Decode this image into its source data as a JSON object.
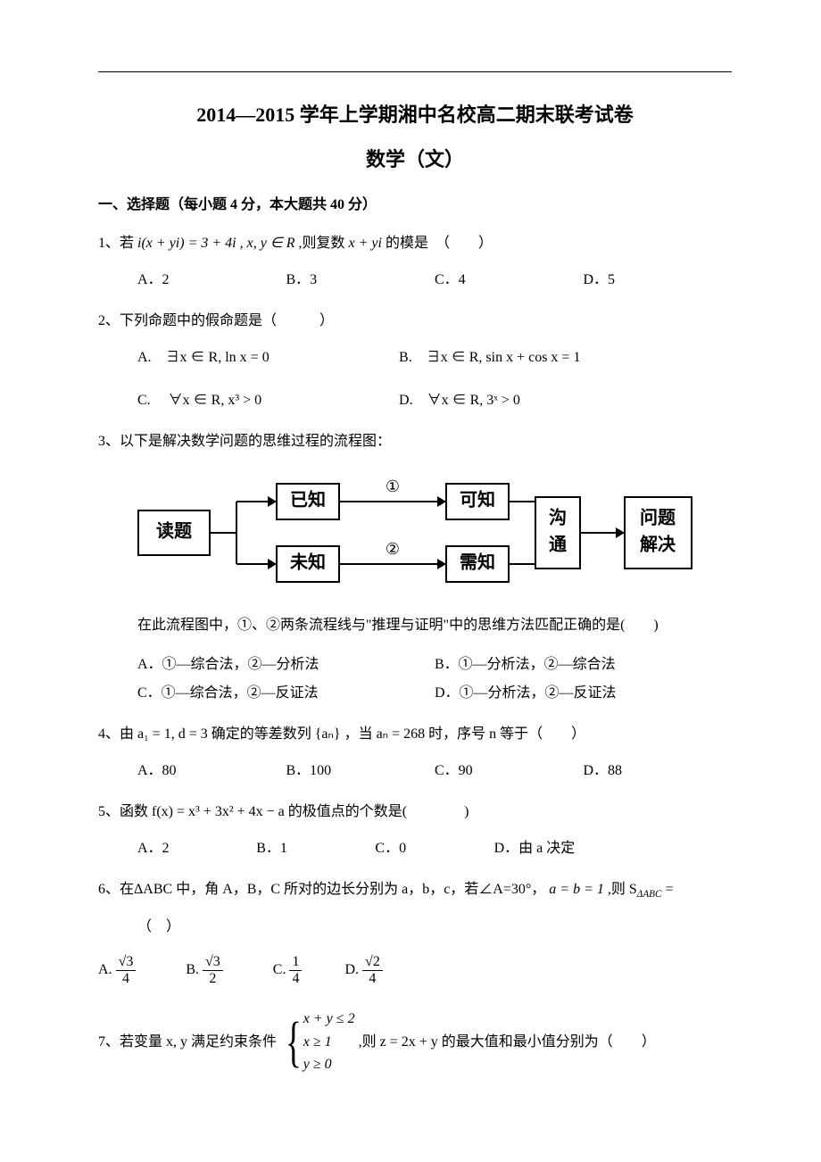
{
  "header": {
    "title": "2014—2015 学年上学期湘中名校高二期末联考试卷",
    "subtitle": "数学（文）"
  },
  "section1": {
    "heading": "一、选择题（每小题 4 分，本大题共 40 分）"
  },
  "q1": {
    "stem_pre": "1、若 ",
    "math": "i(x + yi) = 3 + 4i , x, y ∈ R",
    "stem_mid": " ,则复数 ",
    "math2": "x + yi",
    "stem_post": " 的模是　（　　）",
    "optA": "A．2",
    "optB": "B．3",
    "optC": "C．4",
    "optD": "D．5"
  },
  "q2": {
    "stem": "2、下列命题中的假命题是（　　　）",
    "optA": "A.　∃x ∈ R, ln x = 0",
    "optB": "B.　∃x ∈ R, sin x + cos x = 1",
    "optC": "C.　 ∀x ∈ R, x³ > 0",
    "optD": "D.　∀x ∈ R, 3ˣ > 0"
  },
  "q3": {
    "stem": "3、以下是解决数学问题的思维过程的流程图：",
    "flow": {
      "nodes": {
        "read": "读题",
        "known": "已知",
        "unknown": "未知",
        "canknow": "可知",
        "needknow": "需知",
        "comm_top": "沟",
        "comm_bot": "通",
        "solve_top": "问题",
        "solve_bot": "解决"
      },
      "labels": {
        "one": "①",
        "two": "②"
      },
      "colors": {
        "stroke": "#000000",
        "fill": "#ffffff",
        "text": "#000000"
      }
    },
    "after": "在此流程图中，①、②两条流程线与\"推理与证明\"中的思维方法匹配正确的是(　　)",
    "optA": "A．①—综合法，②—分析法",
    "optB": "B．①—分析法，②—综合法",
    "optC": "C．①—综合法，②—反证法",
    "optD": "D．①—分析法，②—反证法"
  },
  "q4": {
    "stem": "4、由 a₁ = 1, d = 3 确定的等差数列 {aₙ} ，当 aₙ = 268 时，序号 n 等于（　　）",
    "optA": "A．80",
    "optB": "B．100",
    "optC": "C．90",
    "optD": "D．88"
  },
  "q5": {
    "stem": "5、函数 f(x) = x³ + 3x² + 4x − a 的极值点的个数是(　　　　)",
    "optA": "A．2",
    "optB": "B．1",
    "optC": "C．0",
    "optD": "D．由 a 决定"
  },
  "q6": {
    "stem_pre": "6、在ΔABC 中，角 A，B，C 所对的边长分别为 a，b，c，若∠A=30°，",
    "stem_math": " a = b = 1",
    "stem_post": " ,则 S",
    "sub": "ΔABC",
    "equals": " =",
    "paren": "（　）",
    "optA_num_sqrt": "3",
    "optA_den": "4",
    "optB_num_sqrt": "3",
    "optB_den": "2",
    "optC_num": "1",
    "optC_den": "4",
    "optD_num_sqrt": "2",
    "optD_den": "4",
    "labelA": "A.",
    "labelB": "B.",
    "labelC": "C.",
    "labelD": "D."
  },
  "q7": {
    "stem_pre": "7、若变量 x, y 满足约束条件",
    "sys_l1": "x + y ≤ 2",
    "sys_l2": "x ≥ 1",
    "sys_l3": "y ≥ 0",
    "stem_post": " ,则 z = 2x + y 的最大值和最小值分别为（　　）"
  }
}
